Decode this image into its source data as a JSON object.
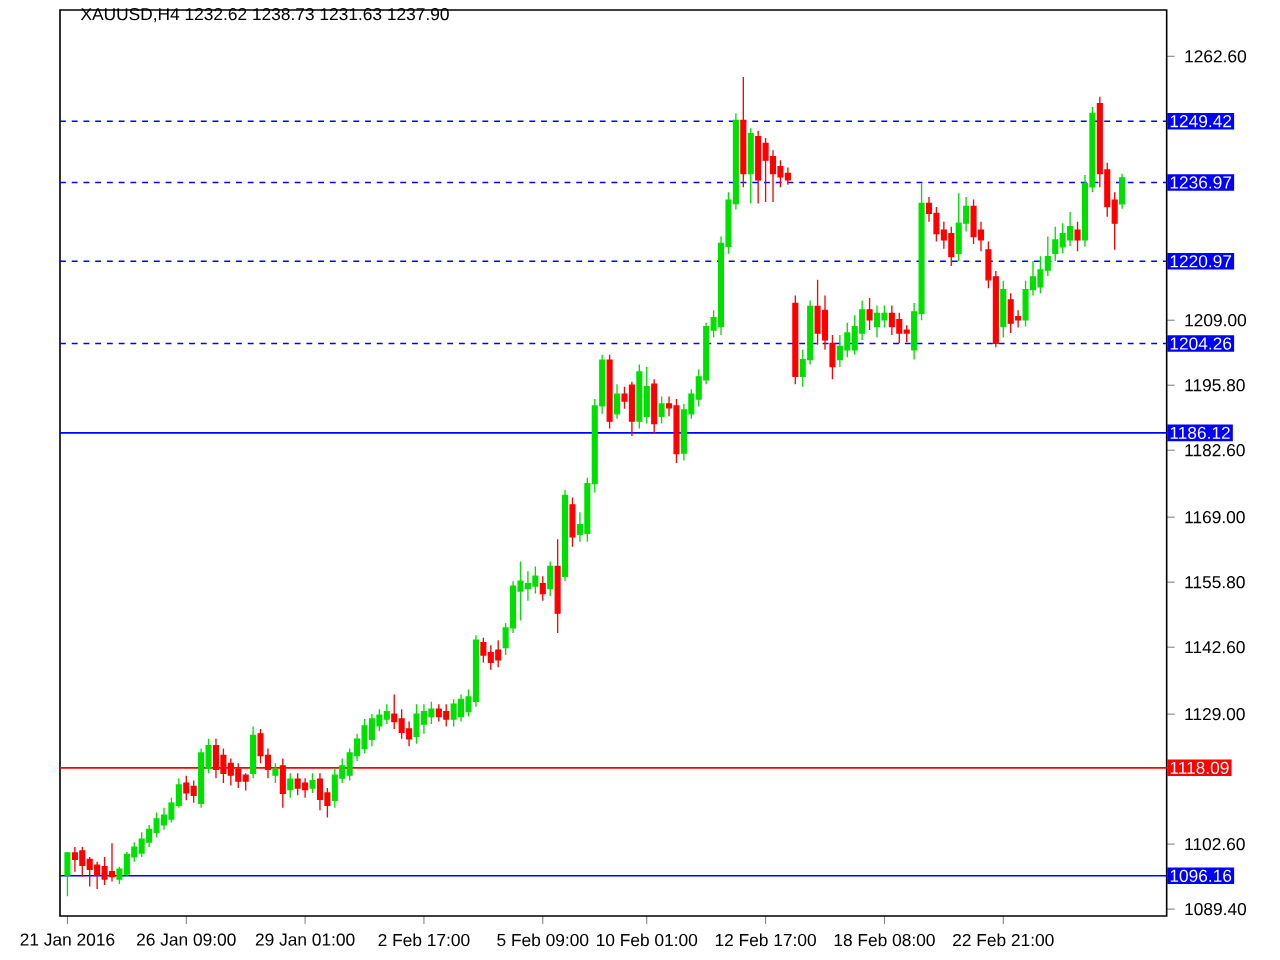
{
  "chart_data": {
    "type": "candlestick",
    "title": "XAUUSD,H4  1232.62 1238.73 1231.63 1237.90",
    "categories": [
      "21 Jan 2016",
      null,
      null,
      null,
      null,
      null,
      null,
      null,
      null,
      null,
      null,
      null,
      null,
      null,
      null,
      null,
      "26 Jan 09:00",
      null,
      null,
      null,
      null,
      null,
      null,
      null,
      null,
      null,
      null,
      null,
      null,
      null,
      null,
      null,
      "29 Jan 01:00",
      null,
      null,
      null,
      null,
      null,
      null,
      null,
      null,
      null,
      null,
      null,
      null,
      null,
      null,
      null,
      "2 Feb 17:00",
      null,
      null,
      null,
      null,
      null,
      null,
      null,
      null,
      null,
      null,
      null,
      null,
      null,
      null,
      null,
      "5 Feb 09:00",
      null,
      null,
      null,
      null,
      null,
      null,
      null,
      null,
      null,
      null,
      null,
      null,
      null,
      "10 Feb 01:00",
      null,
      null,
      null,
      null,
      null,
      null,
      null,
      null,
      null,
      null,
      null,
      null,
      null,
      null,
      null,
      "12 Feb 17:00",
      null,
      null,
      null,
      null,
      null,
      null,
      null,
      null,
      null,
      null,
      null,
      null,
      null,
      null,
      null,
      "18 Feb 08:00",
      null,
      null,
      null,
      null,
      null,
      null,
      null,
      null,
      null,
      null,
      null,
      null,
      null,
      null,
      null,
      "22 Feb 21:00",
      null,
      null,
      null,
      null,
      null,
      null,
      null,
      null,
      null,
      null,
      null,
      null,
      null,
      null,
      null,
      null
    ],
    "ohlc": [
      [
        1096.3,
        1101,
        1092,
        1100.8
      ],
      [
        1100.8,
        1102,
        1097,
        1099.5
      ],
      [
        1101.2,
        1102,
        1096,
        1098.3
      ],
      [
        1099.5,
        1100,
        1094,
        1097.5
      ],
      [
        1098.3,
        1099,
        1093.5,
        1096.3
      ],
      [
        1098,
        1100,
        1094.3,
        1095.5
      ],
      [
        1097,
        1102.8,
        1095,
        1096
      ],
      [
        1095.5,
        1098,
        1094.5,
        1097.5
      ],
      [
        1096.5,
        1101,
        1096,
        1100.5
      ],
      [
        1100,
        1103,
        1099,
        1102
      ],
      [
        1100.8,
        1105,
        1100,
        1103.6
      ],
      [
        1103,
        1106.5,
        1102,
        1105.6
      ],
      [
        1105,
        1109,
        1104,
        1107.7
      ],
      [
        1106.5,
        1110,
        1105.5,
        1108.5
      ],
      [
        1107.7,
        1112,
        1107,
        1110.9
      ],
      [
        1110.5,
        1116,
        1110,
        1114.6
      ],
      [
        1115,
        1116.5,
        1111.5,
        1113
      ],
      [
        1114.3,
        1115.5,
        1111,
        1112.5
      ],
      [
        1110.9,
        1122,
        1110,
        1121.1
      ],
      [
        1118,
        1124,
        1117,
        1122.6
      ],
      [
        1122.6,
        1124,
        1116,
        1117.8
      ],
      [
        1120.6,
        1122,
        1115,
        1117
      ],
      [
        1119,
        1120,
        1114.5,
        1116.6
      ],
      [
        1117.8,
        1119,
        1114,
        1115.4
      ],
      [
        1116.6,
        1117,
        1113.5,
        1115.4
      ],
      [
        1117,
        1126.5,
        1116,
        1124.7
      ],
      [
        1125,
        1126,
        1119,
        1120.6
      ],
      [
        1120.6,
        1122,
        1116,
        1117.8
      ],
      [
        1116.6,
        1119,
        1115,
        1117.8
      ],
      [
        1118.5,
        1120,
        1110,
        1112.9
      ],
      [
        1113.7,
        1117,
        1112,
        1115.8
      ],
      [
        1115.8,
        1117,
        1112.5,
        1114
      ],
      [
        1115,
        1116,
        1112,
        1113.7
      ],
      [
        1114,
        1117,
        1113,
        1115.5
      ],
      [
        1115.8,
        1117,
        1109.5,
        1111.7
      ],
      [
        1113,
        1114,
        1108,
        1110.5
      ],
      [
        1111.5,
        1118,
        1110,
        1116.6
      ],
      [
        1116,
        1120,
        1115,
        1118.5
      ],
      [
        1116.6,
        1122,
        1115.5,
        1121.1
      ],
      [
        1120.6,
        1125,
        1119.5,
        1123.9
      ],
      [
        1122,
        1128,
        1121,
        1126.6
      ],
      [
        1123.9,
        1129,
        1122.5,
        1128
      ],
      [
        1126.6,
        1130,
        1125.5,
        1128.8
      ],
      [
        1128,
        1131,
        1127,
        1129.5
      ],
      [
        1129,
        1133,
        1126,
        1127.5
      ],
      [
        1128,
        1130,
        1124,
        1125.3
      ],
      [
        1126,
        1127.5,
        1122.5,
        1124
      ],
      [
        1124.5,
        1131,
        1123,
        1129
      ],
      [
        1127,
        1131,
        1125,
        1129.5
      ],
      [
        1128.5,
        1131.5,
        1127,
        1130
      ],
      [
        1130,
        1131,
        1127.5,
        1128.5
      ],
      [
        1129.5,
        1131,
        1126.5,
        1128
      ],
      [
        1128,
        1132,
        1126.5,
        1131
      ],
      [
        1128.5,
        1133,
        1127.5,
        1132
      ],
      [
        1129.5,
        1134,
        1128.5,
        1132.5
      ],
      [
        1131.6,
        1145,
        1130.5,
        1144
      ],
      [
        1143.5,
        1144.5,
        1139.5,
        1141
      ],
      [
        1141.5,
        1143,
        1138,
        1139.5
      ],
      [
        1142,
        1144,
        1138.5,
        1140
      ],
      [
        1142.5,
        1147.5,
        1141,
        1146.5
      ],
      [
        1146.5,
        1156,
        1145.5,
        1155
      ],
      [
        1154,
        1160,
        1148,
        1156
      ],
      [
        1154.5,
        1158,
        1152,
        1155.5
      ],
      [
        1155,
        1159,
        1153.5,
        1157
      ],
      [
        1155.5,
        1157,
        1152,
        1153.5
      ],
      [
        1154.5,
        1160,
        1153,
        1159
      ],
      [
        1159,
        1164.5,
        1145.5,
        1149.5
      ],
      [
        1157,
        1174.5,
        1156,
        1173.4
      ],
      [
        1171.5,
        1173,
        1163,
        1165
      ],
      [
        1165.5,
        1170,
        1164,
        1167.5
      ],
      [
        1165.7,
        1177,
        1164,
        1175.8
      ],
      [
        1175.8,
        1193,
        1174,
        1191.6
      ],
      [
        1191.6,
        1202,
        1190,
        1200.9
      ],
      [
        1200.9,
        1202,
        1187,
        1188.5
      ],
      [
        1190,
        1196,
        1189,
        1194
      ],
      [
        1194,
        1195.5,
        1191,
        1192.6
      ],
      [
        1195.8,
        1196.5,
        1185.5,
        1188.5
      ],
      [
        1188.5,
        1200,
        1187,
        1198.5
      ],
      [
        1189.5,
        1199.5,
        1188,
        1195.5
      ],
      [
        1196,
        1197,
        1186,
        1188
      ],
      [
        1189.5,
        1193.5,
        1188,
        1192
      ],
      [
        1192,
        1193.5,
        1189.5,
        1191.2
      ],
      [
        1191.6,
        1193,
        1180,
        1181.9
      ],
      [
        1182,
        1192,
        1180.5,
        1190.8
      ],
      [
        1190,
        1195,
        1189,
        1194
      ],
      [
        1193,
        1199,
        1191.5,
        1197.5
      ],
      [
        1196.9,
        1208.5,
        1196,
        1207.7
      ],
      [
        1207,
        1211,
        1205.5,
        1209.5
      ],
      [
        1207.7,
        1226,
        1206,
        1224.6
      ],
      [
        1224,
        1235,
        1222.5,
        1233.4
      ],
      [
        1232.7,
        1251,
        1231.5,
        1249.6
      ],
      [
        1249.6,
        1258.4,
        1236,
        1238.8
      ],
      [
        1238.8,
        1248,
        1232.7,
        1246.9
      ],
      [
        1246.3,
        1247.5,
        1232.7,
        1237.5
      ],
      [
        1244.9,
        1246,
        1233,
        1241.5
      ],
      [
        1242.2,
        1243.5,
        1233,
        1238.8
      ],
      [
        1240.2,
        1241.5,
        1236,
        1238.1
      ],
      [
        1238.8,
        1240,
        1236.5,
        1237.5
      ],
      [
        1212.4,
        1214,
        1196,
        1197.6
      ],
      [
        1197.6,
        1203,
        1195.5,
        1201
      ],
      [
        1201,
        1213,
        1200,
        1211.8
      ],
      [
        1211.8,
        1217.2,
        1204,
        1206.4
      ],
      [
        1211,
        1214,
        1203,
        1205
      ],
      [
        1204.3,
        1206,
        1197,
        1199.6
      ],
      [
        1201,
        1206,
        1199.5,
        1203.7
      ],
      [
        1203,
        1208.5,
        1201.5,
        1206.4
      ],
      [
        1203,
        1210,
        1202,
        1207.7
      ],
      [
        1206.4,
        1213,
        1205,
        1211.1
      ],
      [
        1211.1,
        1213.5,
        1207,
        1209.1
      ],
      [
        1207.7,
        1212,
        1205.5,
        1210.4
      ],
      [
        1209.1,
        1212,
        1207.5,
        1210.4
      ],
      [
        1210.4,
        1212,
        1206,
        1207.7
      ],
      [
        1209.1,
        1210.5,
        1204.3,
        1206.4
      ],
      [
        1207,
        1208,
        1204.5,
        1206.4
      ],
      [
        1203,
        1212.5,
        1201,
        1210.7
      ],
      [
        1210.4,
        1236.8,
        1209,
        1232.7
      ],
      [
        1232.7,
        1234,
        1229,
        1230.7
      ],
      [
        1230.7,
        1232,
        1225,
        1226.6
      ],
      [
        1227.3,
        1229,
        1223.5,
        1225.3
      ],
      [
        1226.6,
        1228,
        1220,
        1221.9
      ],
      [
        1222.6,
        1234.8,
        1221,
        1228.7
      ],
      [
        1228.7,
        1234,
        1227,
        1232.1
      ],
      [
        1232.1,
        1233.5,
        1224.5,
        1226
      ],
      [
        1227.3,
        1229,
        1223,
        1225.3
      ],
      [
        1223.3,
        1225,
        1215.5,
        1217.2
      ],
      [
        1217.8,
        1219,
        1203.5,
        1204.3
      ],
      [
        1207.7,
        1217,
        1205.5,
        1215.2
      ],
      [
        1213.1,
        1214.5,
        1206.4,
        1208.4
      ],
      [
        1209.7,
        1211,
        1207.5,
        1209.1
      ],
      [
        1209.1,
        1217,
        1207.7,
        1215.2
      ],
      [
        1215.2,
        1221,
        1214,
        1217.8
      ],
      [
        1215.8,
        1222,
        1214.5,
        1219.2
      ],
      [
        1219.2,
        1226,
        1218,
        1221.9
      ],
      [
        1222.6,
        1228,
        1221,
        1225.3
      ],
      [
        1223.9,
        1228.7,
        1222.6,
        1226.6
      ],
      [
        1225.3,
        1231,
        1224,
        1228
      ],
      [
        1227.3,
        1229,
        1223,
        1225.3
      ],
      [
        1225.3,
        1238.5,
        1223.9,
        1236.8
      ],
      [
        1236.1,
        1252.3,
        1235,
        1251
      ],
      [
        1253,
        1254.4,
        1236,
        1238.8
      ],
      [
        1239.5,
        1241,
        1230,
        1232.1
      ],
      [
        1233.4,
        1235,
        1223.3,
        1228.7
      ],
      [
        1232.62,
        1238.73,
        1231.63,
        1237.9
      ]
    ],
    "colors": [
      "#00e000",
      "#ff0000",
      "#ff0000",
      "#ff0000",
      "#ff0000",
      "#ff0000",
      "#ff0000",
      "#00e000",
      "#00e000",
      "#00e000",
      "#00e000",
      "#00e000",
      "#00e000",
      "#00e000",
      "#00e000",
      "#00e000",
      "#ff0000",
      "#ff0000",
      "#00e000",
      "#00e000",
      "#ff0000",
      "#ff0000",
      "#ff0000",
      "#ff0000",
      "#ff0000",
      "#00e000",
      "#ff0000",
      "#ff0000",
      "#00e000",
      "#ff0000",
      "#00e000",
      "#ff0000",
      "#ff0000",
      "#00e000",
      "#ff0000",
      "#ff0000",
      "#00e000",
      "#00e000",
      "#00e000",
      "#00e000",
      "#00e000",
      "#00e000",
      "#00e000",
      "#00e000",
      "#ff0000",
      "#ff0000",
      "#ff0000",
      "#00e000",
      "#00e000",
      "#00e000",
      "#ff0000",
      "#ff0000",
      "#00e000",
      "#00e000",
      "#00e000",
      "#00e000",
      "#ff0000",
      "#ff0000",
      "#ff0000",
      "#00e000",
      "#00e000",
      "#00e000",
      "#00e000",
      "#00e000",
      "#ff0000",
      "#00e000",
      "#ff0000",
      "#00e000",
      "#ff0000",
      "#00e000",
      "#00e000",
      "#00e000",
      "#00e000",
      "#ff0000",
      "#00e000",
      "#ff0000",
      "#ff0000",
      "#00e000",
      "#00e000",
      "#ff0000",
      "#00e000",
      "#ff0000",
      "#ff0000",
      "#00e000",
      "#00e000",
      "#00e000",
      "#00e000",
      "#00e000",
      "#00e000",
      "#00e000",
      "#00e000",
      "#ff0000",
      "#00e000",
      "#ff0000",
      "#ff0000",
      "#ff0000",
      "#ff0000",
      "#ff0000",
      "#ff0000",
      "#00e000",
      "#00e000",
      "#ff0000",
      "#ff0000",
      "#ff0000",
      "#00e000",
      "#00e000",
      "#00e000",
      "#00e000",
      "#ff0000",
      "#00e000",
      "#00e000",
      "#ff0000",
      "#ff0000",
      "#ff0000",
      "#00e000",
      "#00e000",
      "#ff0000",
      "#ff0000",
      "#ff0000",
      "#ff0000",
      "#00e000",
      "#00e000",
      "#ff0000",
      "#ff0000",
      "#ff0000",
      "#ff0000",
      "#00e000",
      "#ff0000",
      "#ff0000",
      "#00e000",
      "#00e000",
      "#00e000",
      "#00e000",
      "#00e000",
      "#00e000",
      "#00e000",
      "#ff0000",
      "#00e000",
      "#00e000",
      "#ff0000",
      "#ff0000",
      "#ff0000",
      "#00e000"
    ],
    "ylim": [
      1088,
      1272
    ],
    "yticks": [
      {
        "value": 1089.4,
        "label": "1089.40"
      },
      {
        "value": 1102.6,
        "label": "1102.60"
      },
      {
        "value": 1129,
        "label": "1129.00"
      },
      {
        "value": 1142.6,
        "label": "1142.60"
      },
      {
        "value": 1155.8,
        "label": "1155.80"
      },
      {
        "value": 1169,
        "label": "1169.00"
      },
      {
        "value": 1182.6,
        "label": "1182.60"
      },
      {
        "value": 1195.8,
        "label": "1195.80"
      },
      {
        "value": 1209,
        "label": "1209.00"
      },
      {
        "value": 1262.6,
        "label": "1262.60"
      }
    ],
    "ref_lines": [
      {
        "axis": "y",
        "value": 1249.42,
        "label": "1249.42",
        "color": "#0000ff",
        "line_style": "dashed"
      },
      {
        "axis": "y",
        "value": 1236.97,
        "label": "1236.97",
        "color": "#0000ff",
        "line_style": "dashed"
      },
      {
        "axis": "y",
        "value": 1220.97,
        "label": "1220.97",
        "color": "#0000ff",
        "line_style": "dashed"
      },
      {
        "axis": "y",
        "value": 1204.26,
        "label": "1204.26",
        "color": "#0000ff",
        "line_style": "dashed"
      },
      {
        "axis": "y",
        "value": 1186.12,
        "label": "1186.12",
        "color": "#0000ff",
        "line_style": "solid"
      },
      {
        "axis": "y",
        "value": 1118.09,
        "label": "1118.09",
        "color": "#ff0000",
        "line_style": "solid"
      },
      {
        "axis": "y",
        "value": 1096.16,
        "label": "1096.16",
        "color": "#0000ff",
        "line_style": "solid"
      }
    ]
  }
}
